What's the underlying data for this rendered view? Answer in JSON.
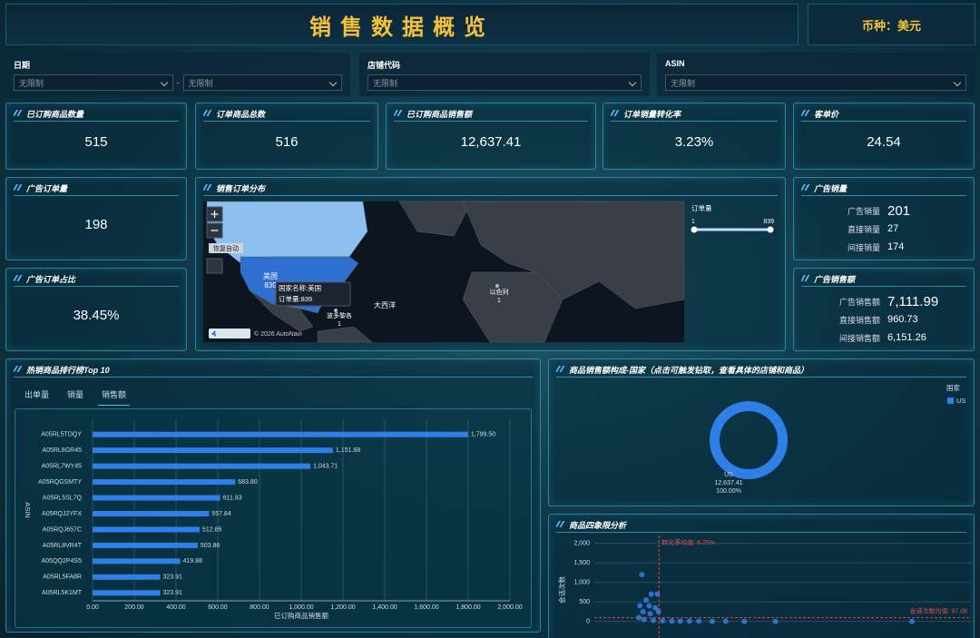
{
  "header": {
    "title": "销售数据概览",
    "currency": "币种：美元"
  },
  "filters": [
    {
      "label": "日期",
      "inputs": [
        "无限制",
        "无限制"
      ],
      "separator": "-"
    },
    {
      "label": "店铺代码",
      "inputs": [
        "无限制"
      ]
    },
    {
      "label": "ASIN",
      "inputs": [
        "无限制"
      ]
    }
  ],
  "kpis": [
    {
      "label": "已订购商品数量",
      "value": "515"
    },
    {
      "label": "订单商品总数",
      "value": "516"
    },
    {
      "label": "已订购商品销售额",
      "value": "12,637.41"
    },
    {
      "label": "订单销量转化率",
      "value": "3.23%"
    },
    {
      "label": "客单价",
      "value": "24.54"
    },
    {
      "label": "广告订单量",
      "value": "198"
    },
    {
      "label": "广告订单占比",
      "value": "38.45%"
    }
  ],
  "ad_sales": {
    "title": "广告销量",
    "rows": [
      {
        "label": "广告销量",
        "value": "201"
      },
      {
        "label": "直接销量",
        "value": "27"
      },
      {
        "label": "间接销量",
        "value": "174"
      }
    ]
  },
  "ad_revenue": {
    "title": "广告销售额",
    "rows": [
      {
        "label": "广告销售额",
        "value": "7,111.99"
      },
      {
        "label": "直接销售额",
        "value": "960.73"
      },
      {
        "label": "间接销售额",
        "value": "6,151.26"
      }
    ]
  },
  "map": {
    "title": "销售订单分布",
    "regions": [
      {
        "name": "美国",
        "value": 839
      },
      {
        "name": "波多黎各",
        "value": 1
      },
      {
        "name": "以色列",
        "value": 1
      }
    ],
    "tooltip": [
      "国家名称:美国",
      "订单量:839"
    ],
    "ocean_label": "大西洋",
    "reset_button": "恢复自动",
    "attribution": "© 2026 AutoNavi",
    "visual_map": {
      "title": "订单量",
      "min": 1,
      "max": 839
    }
  },
  "chart_data": [
    {
      "type": "bar",
      "orientation": "horizontal",
      "title": "热销商品排行榜Top 10",
      "tabs": [
        "出单量",
        "销量",
        "销售额"
      ],
      "x_label": "已订购商品销售额",
      "y_label": "ASIN",
      "color": "#2f7fe8",
      "categories": [
        "A05RL5TDQY",
        "A05RL8GR45",
        "A05RL7WY45",
        "A05RQGSMTY",
        "A05RL5SL7Q",
        "A05RQJ2YFX",
        "A05RQJ657C",
        "A05RL8VR4T",
        "A05QQ2P4S5",
        "A05RL5FA8R",
        "A05RL5K1MT"
      ],
      "values": [
        1799.5,
        1151.68,
        1043.71,
        683.8,
        611.83,
        557.84,
        512.85,
        503.86,
        419.88,
        323.91,
        323.91
      ],
      "value_labels": [
        "1,799.50",
        "1,151.68",
        "1,043.71",
        "683.80",
        "611.83",
        "557.84",
        "512.85",
        "503.86",
        "419.88",
        "323.91",
        "323.91"
      ],
      "xlim": [
        0,
        2000
      ],
      "xticks": [
        {
          "value": 0,
          "label": "0.00"
        },
        {
          "value": 200,
          "label": "200.00"
        },
        {
          "value": 400,
          "label": "400.00"
        },
        {
          "value": 600,
          "label": "600.00"
        },
        {
          "value": 800,
          "label": "800.00"
        },
        {
          "value": 1000,
          "label": "1,000.00"
        },
        {
          "value": 1200,
          "label": "1,200.00"
        },
        {
          "value": 1400,
          "label": "1,400.00"
        },
        {
          "value": 1600,
          "label": "1,600.00"
        },
        {
          "value": 1800,
          "label": "1,800.00"
        },
        {
          "value": 2000,
          "label": "2,000.00"
        }
      ],
      "grid": true
    },
    {
      "type": "pie",
      "title": "商品销售额构成-国家（点击可触发钻取，查看具体的店铺和商品）",
      "legend_title": "国家",
      "categories": [
        "US"
      ],
      "values": [
        12637.41
      ],
      "value_labels": [
        "12,637.41"
      ],
      "percent_labels": [
        "100.00%"
      ],
      "color": "#2f7fe8"
    },
    {
      "type": "scatter",
      "title": "商品四象限分析",
      "y_label": "会话次数",
      "color": "#2f7fe8",
      "x": [
        4.6,
        5.5,
        6.1,
        5.0,
        4.4,
        5.3,
        5.9,
        4.7,
        5.4,
        6.2,
        4.3,
        4.8,
        5.7,
        6.6,
        7.5,
        8.3,
        9.2,
        10.1,
        11.4,
        12.7,
        14.5,
        17.5,
        30.7
      ],
      "values": [
        1200,
        700,
        700,
        550,
        400,
        400,
        350,
        250,
        200,
        250,
        100,
        50,
        30,
        20,
        10,
        5,
        10,
        5,
        0,
        5,
        0,
        0,
        0
      ],
      "xlim": [
        0,
        36.4
      ],
      "ylim": [
        -400,
        2200
      ],
      "yticks": [
        0,
        500,
        {
          "value": 1000,
          "label": "1,000"
        },
        {
          "value": 1500,
          "label": "1,500"
        },
        {
          "value": 2000,
          "label": "2,000"
        }
      ],
      "grid": true,
      "reference_lines": [
        {
          "axis": "x",
          "value": 6.25,
          "label": "转化率均值: 6.25%"
        },
        {
          "axis": "y",
          "value": 97.08,
          "label": "会话次数均值: 97.08"
        }
      ]
    }
  ]
}
